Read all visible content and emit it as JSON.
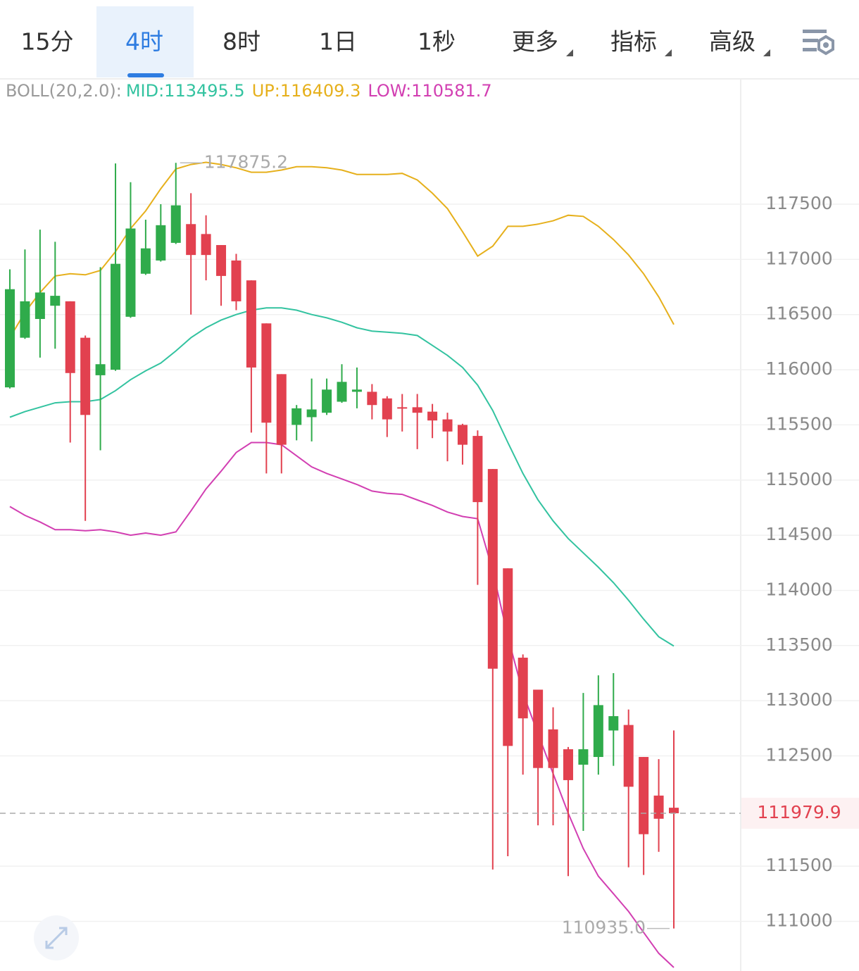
{
  "tabs": {
    "items": [
      "15分",
      "4时",
      "8时",
      "1日",
      "1秒",
      "更多",
      "指标",
      "高级"
    ],
    "active": 1,
    "dropdown_from": 5
  },
  "chart_data": {
    "type": "candlestick",
    "indicator": {
      "label": "BOLL(20,2.0):",
      "entries": [
        {
          "text": "MID:113495.5",
          "color": "#33c3a0"
        },
        {
          "text": "UP:116409.3",
          "color": "#e6b01c"
        },
        {
          "text": "LOW:110581.7",
          "color": "#d23fb2"
        }
      ]
    },
    "up_color": "#2fab4b",
    "down_color": "#e2414f",
    "open": [
      115840,
      116290,
      116460,
      116580,
      116620,
      116290,
      115950,
      116000,
      116480,
      116870,
      116990,
      117150,
      117320,
      117230,
      117130,
      116990,
      116810,
      116420,
      115960,
      115500,
      115570,
      115610,
      115710,
      115800,
      115800,
      115740,
      115660,
      115660,
      115620,
      115550,
      115500,
      115400,
      115100,
      114200,
      113390,
      113100,
      112740,
      112560,
      112420,
      112490,
      112730,
      112780,
      112490,
      112140,
      112030
    ],
    "high": [
      116910,
      117090,
      117270,
      117160,
      116620,
      116310,
      116930,
      117870,
      117700,
      117360,
      117500,
      117875.2,
      117600,
      117400,
      117130,
      117050,
      116810,
      116420,
      115960,
      115680,
      115920,
      115920,
      116050,
      116020,
      115870,
      115760,
      115780,
      115780,
      115690,
      115610,
      115510,
      115450,
      115100,
      114200,
      113420,
      113100,
      112940,
      112580,
      113070,
      113230,
      113250,
      112920,
      112490,
      112470,
      112730
    ],
    "low": [
      115830,
      116280,
      116110,
      116190,
      115340,
      114630,
      115270,
      115990,
      116470,
      116860,
      116980,
      117140,
      116500,
      116810,
      116580,
      116540,
      115430,
      115060,
      115060,
      115360,
      115350,
      115590,
      115700,
      115650,
      115550,
      115390,
      115440,
      115280,
      115380,
      115170,
      115140,
      114050,
      111470,
      111590,
      112330,
      111870,
      111870,
      111410,
      111820,
      112330,
      112410,
      111490,
      111420,
      111630,
      110935.0
    ],
    "close": [
      116730,
      116620,
      116700,
      116670,
      115970,
      115590,
      116050,
      116960,
      117280,
      117100,
      117310,
      117490,
      117040,
      117040,
      116850,
      116620,
      116020,
      115520,
      115320,
      115650,
      115640,
      115820,
      115890,
      115820,
      115680,
      115550,
      115650,
      115610,
      115540,
      115440,
      115320,
      114800,
      113290,
      112590,
      112840,
      112390,
      112390,
      112280,
      112560,
      112960,
      112860,
      112220,
      111790,
      111930,
      111979.9
    ],
    "bands": [
      {
        "color": "#e6b01c",
        "values": [
          116290,
          116520,
          116700,
          116850,
          116870,
          116860,
          116900,
          117070,
          117280,
          117440,
          117640,
          117820,
          117860,
          117880,
          117860,
          117830,
          117790,
          117790,
          117810,
          117840,
          117840,
          117830,
          117810,
          117770,
          117770,
          117770,
          117780,
          117720,
          117600,
          117460,
          117250,
          117030,
          117120,
          117300,
          117300,
          117320,
          117350,
          117400,
          117390,
          117300,
          117180,
          117040,
          116870,
          116660,
          116409.3
        ]
      },
      {
        "color": "#33c3a0",
        "values": [
          115570,
          115620,
          115660,
          115700,
          115710,
          115710,
          115730,
          115810,
          115910,
          115990,
          116060,
          116170,
          116290,
          116380,
          116450,
          116500,
          116540,
          116560,
          116560,
          116540,
          116500,
          116470,
          116430,
          116380,
          116350,
          116340,
          116330,
          116310,
          116220,
          116130,
          116020,
          115860,
          115630,
          115340,
          115060,
          114820,
          114630,
          114470,
          114340,
          114210,
          114070,
          113910,
          113740,
          113580,
          113495.5
        ]
      },
      {
        "color": "#d23fb2",
        "values": [
          114760,
          114680,
          114620,
          114550,
          114550,
          114540,
          114550,
          114530,
          114500,
          114520,
          114500,
          114530,
          114720,
          114920,
          115080,
          115250,
          115340,
          115340,
          115320,
          115220,
          115120,
          115060,
          115010,
          114960,
          114900,
          114880,
          114870,
          114820,
          114770,
          114710,
          114670,
          114650,
          114180,
          113580,
          113070,
          112700,
          112340,
          111980,
          111660,
          111410,
          111250,
          111090,
          110900,
          110710,
          110581.7
        ]
      }
    ],
    "ylim": [
      110550,
      118630
    ],
    "yticks": [
      117500,
      117000,
      116500,
      116000,
      115500,
      115000,
      114500,
      114000,
      113500,
      113000,
      112500,
      111500,
      111000
    ],
    "grid": true,
    "last_price": {
      "value": 111979.9,
      "label": "111979.9"
    },
    "annotations": {
      "high": {
        "value": 117875.2,
        "label": "117875.2",
        "index": 11
      },
      "low": {
        "value": 110935.0,
        "label": "110935.0",
        "index": 44
      }
    }
  }
}
